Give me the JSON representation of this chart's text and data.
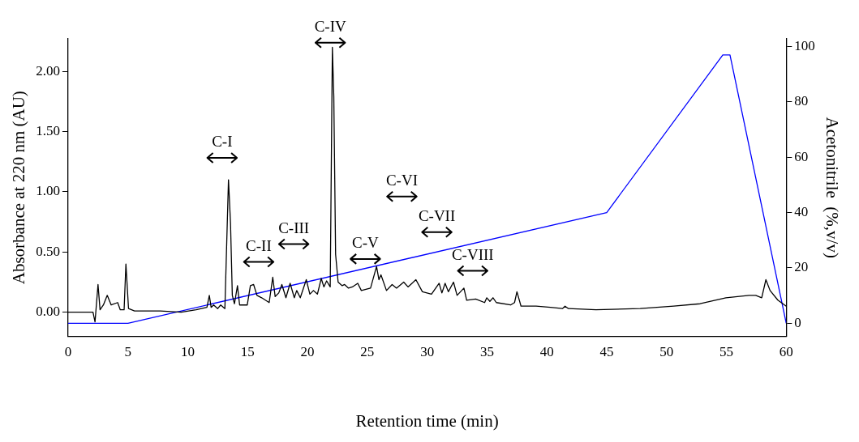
{
  "chart_data": {
    "type": "line",
    "xlabel": "Retention time (min)",
    "ylabel": "Absorbance at 220 nm (AU)",
    "y2label": "Acetonitrile  (%,v/v)",
    "xlim": [
      0,
      60
    ],
    "xticks": [
      0,
      5,
      10,
      15,
      20,
      25,
      30,
      35,
      40,
      45,
      50,
      55,
      60
    ],
    "ylim": [
      -0.2,
      2.27
    ],
    "yticks": [
      {
        "value": 0,
        "label": "0.00"
      },
      {
        "value": 0.5,
        "label": "0.50"
      },
      {
        "value": 1,
        "label": "1.00"
      },
      {
        "value": 1.5,
        "label": "1.50"
      },
      {
        "value": 2,
        "label": "2.00"
      }
    ],
    "y2lim": [
      -4.7,
      102.8
    ],
    "y2ticks": [
      0,
      20,
      40,
      60,
      80,
      100
    ],
    "grid": false,
    "legend": false,
    "marker": "none",
    "line_style": "solid",
    "series": [
      {
        "color": "#000000",
        "x": [
          0,
          2.08,
          2.25,
          2.5,
          2.67,
          2.95,
          3.27,
          3.6,
          4.14,
          4.36,
          4.68,
          4.83,
          5.05,
          5.55,
          7.7,
          9.45,
          10.7,
          11.6,
          11.8,
          11.95,
          12.16,
          12.5,
          12.75,
          13.1,
          13.4,
          13.57,
          13.72,
          13.9,
          14.15,
          14.33,
          14.97,
          15.23,
          15.5,
          15.78,
          16.17,
          16.8,
          17.1,
          17.3,
          17.6,
          17.86,
          18.2,
          18.55,
          18.9,
          19.1,
          19.4,
          19.9,
          20.2,
          20.5,
          20.83,
          21.15,
          21.37,
          21.6,
          21.9,
          22.08,
          22.2,
          22.35,
          22.56,
          22.9,
          23.1,
          23.43,
          23.75,
          24.2,
          24.5,
          25.27,
          25.77,
          25.97,
          26.14,
          26.6,
          27.07,
          27.44,
          28.04,
          28.4,
          29.06,
          29.6,
          30.36,
          31.0,
          31.23,
          31.5,
          31.77,
          32.2,
          32.5,
          33.07,
          33.3,
          34.05,
          34.8,
          34.98,
          35.24,
          35.5,
          35.78,
          36.97,
          37.3,
          37.5,
          37.84,
          39.1,
          40.3,
          41.3,
          41.52,
          41.8,
          44.1,
          47.8,
          50.6,
          52.8,
          54.96,
          56.9,
          57.45,
          57.95,
          58.3,
          58.65,
          59.3,
          60
        ],
        "values": [
          0,
          0,
          -0.08,
          0.23,
          0.02,
          0.06,
          0.14,
          0.06,
          0.08,
          0.02,
          0.02,
          0.4,
          0.03,
          0.01,
          0.01,
          0,
          0.02,
          0.04,
          0.14,
          0.04,
          0.06,
          0.03,
          0.06,
          0.03,
          1.1,
          0.74,
          0.14,
          0.07,
          0.22,
          0.06,
          0.06,
          0.22,
          0.23,
          0.14,
          0.12,
          0.08,
          0.29,
          0.13,
          0.16,
          0.23,
          0.12,
          0.24,
          0.12,
          0.18,
          0.12,
          0.27,
          0.15,
          0.18,
          0.15,
          0.28,
          0.21,
          0.26,
          0.21,
          2.2,
          1.79,
          0.48,
          0.25,
          0.22,
          0.23,
          0.2,
          0.21,
          0.24,
          0.18,
          0.2,
          0.38,
          0.27,
          0.31,
          0.18,
          0.23,
          0.2,
          0.25,
          0.21,
          0.27,
          0.17,
          0.15,
          0.24,
          0.16,
          0.24,
          0.17,
          0.25,
          0.14,
          0.2,
          0.1,
          0.11,
          0.08,
          0.12,
          0.09,
          0.12,
          0.08,
          0.06,
          0.08,
          0.17,
          0.05,
          0.05,
          0.04,
          0.03,
          0.05,
          0.03,
          0.02,
          0.03,
          0.05,
          0.07,
          0.12,
          0.14,
          0.14,
          0.12,
          0.27,
          0.18,
          0.1,
          0.05
        ]
      },
      {
        "color": "#0000ff",
        "axis": "y2",
        "x": [
          0,
          5,
          45,
          54.7,
          55.3,
          60
        ],
        "values": [
          0,
          0,
          40,
          97,
          97,
          0
        ]
      }
    ],
    "annotations": [
      "C-I",
      "C-II",
      "C-III",
      "C-IV",
      "C-V",
      "C-VI",
      "C-VII",
      "C-VIII"
    ]
  }
}
